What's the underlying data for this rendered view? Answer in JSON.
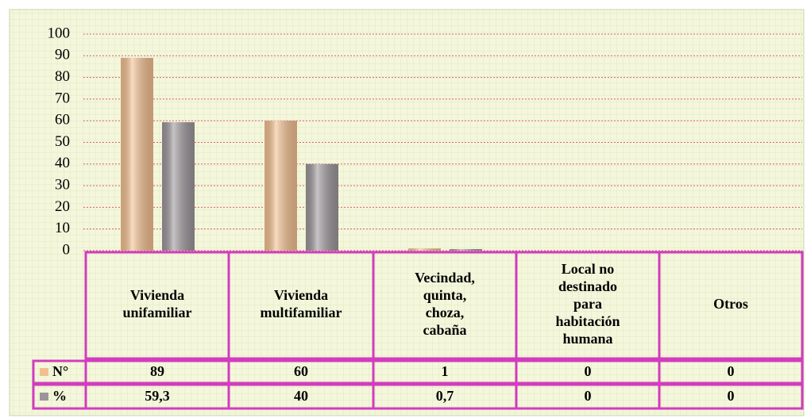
{
  "chart_data": {
    "type": "bar",
    "categories": [
      "Vivienda\nunifamiliar",
      "Vivienda\nmultifamiliar",
      "Vecindad,\nquinta,\nchoza,\ncabaña",
      "Local no\ndestinado\npara\nhabitación\nhumana",
      "Otros"
    ],
    "series": [
      {
        "name": "N°",
        "color": "#f3bf8e",
        "values": [
          89,
          60,
          1,
          0,
          0
        ]
      },
      {
        "name": "%",
        "color": "#9b9599",
        "values": [
          59.3,
          40,
          0.7,
          0,
          0
        ],
        "value_labels": [
          "59,3",
          "40",
          "0,7",
          "0",
          "0"
        ]
      }
    ],
    "ylim": [
      0,
      100
    ],
    "yticks": [
      0,
      10,
      20,
      30,
      40,
      50,
      60,
      70,
      80,
      90,
      100
    ],
    "grid": true
  }
}
